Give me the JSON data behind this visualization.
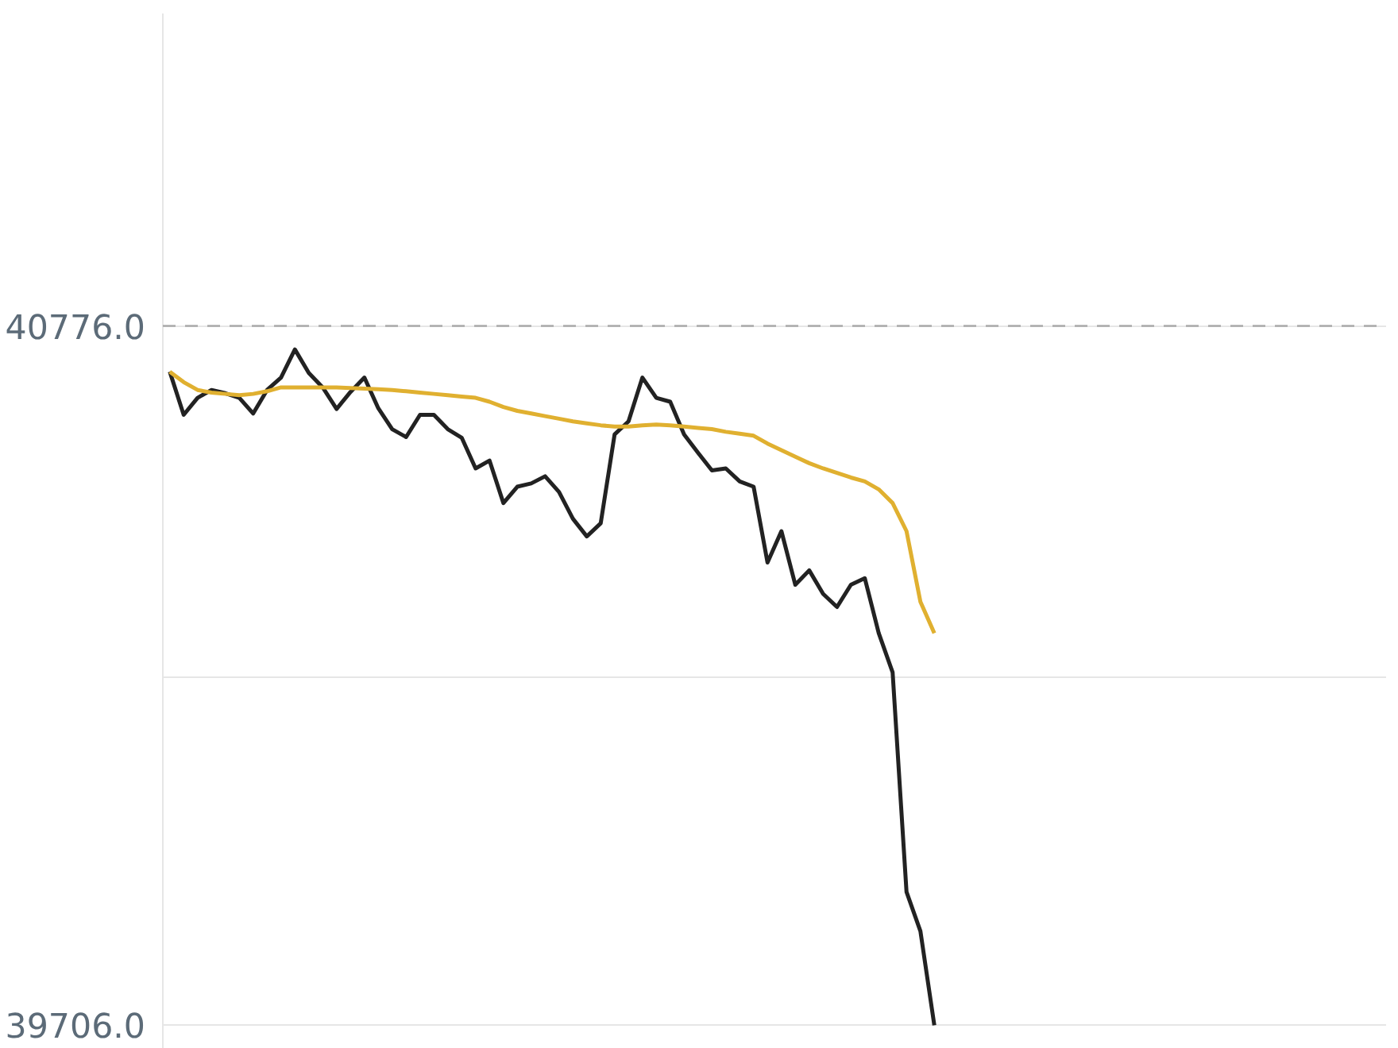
{
  "chart_data": {
    "type": "line",
    "ylim": [
      39670,
      41254
    ],
    "categories": [
      null,
      null,
      null,
      null,
      null,
      null,
      null,
      null,
      null,
      null,
      null,
      null,
      null,
      null,
      null,
      null,
      null,
      null,
      null,
      null,
      null,
      null,
      null,
      null,
      null,
      null,
      null,
      null,
      null,
      null,
      null,
      null,
      null,
      null,
      null,
      null,
      null,
      null,
      null,
      null,
      null,
      null,
      null,
      null,
      null,
      null,
      null,
      null,
      null,
      null,
      null,
      null,
      null,
      null,
      null,
      null,
      null,
      null,
      null,
      null,
      null,
      null,
      null,
      null,
      null,
      null,
      null,
      null,
      null,
      null,
      null,
      null,
      null,
      null,
      null,
      null,
      null,
      null,
      null,
      null,
      null,
      null,
      null,
      null,
      null,
      null,
      null,
      null
    ],
    "yticks": [
      {
        "value": 39706,
        "label": "39706.0"
      },
      {
        "value": 40238,
        "label": null
      },
      {
        "value": 40776,
        "label": "40776.0"
      }
    ],
    "tick_labels": "y",
    "grid": "y",
    "line_style": "solid",
    "ref_lines": [
      {
        "axis": "y",
        "value": 40776,
        "color": "#aaaaaa",
        "line_style": "dashed"
      }
    ],
    "series": [
      {
        "color": "#222222",
        "values": [
          40706,
          40640,
          40666,
          40678,
          40673,
          40666,
          40642,
          40678,
          40697,
          40740,
          40704,
          40682,
          40649,
          40675,
          40697,
          40650,
          40618,
          40606,
          40640,
          40640,
          40618,
          40605,
          40558,
          40570,
          40505,
          40530,
          40535,
          40546,
          40522,
          40481,
          40454,
          40474,
          40610,
          40630,
          40697,
          40666,
          40660,
          40610,
          40582,
          40555,
          40558,
          40538,
          40530,
          40414,
          40462,
          40380,
          40402,
          40366,
          40346,
          40380,
          40390,
          40306,
          40246,
          39910,
          39850,
          39706,
          null,
          null,
          null,
          null,
          null,
          null,
          null,
          null,
          null,
          null,
          null,
          null,
          null,
          null,
          null,
          null,
          null,
          null,
          null,
          null,
          null,
          null,
          null,
          null,
          null,
          null,
          null,
          null,
          null,
          null,
          null,
          null
        ]
      },
      {
        "color": "#e0b030",
        "values": [
          40706,
          40690,
          40678,
          40674,
          40672,
          40670,
          40672,
          40676,
          40682,
          40682,
          40682,
          40682,
          40682,
          40681,
          40680,
          40679,
          40678,
          40676,
          40674,
          40672,
          40670,
          40668,
          40666,
          40660,
          40652,
          40646,
          40642,
          40638,
          40634,
          40630,
          40627,
          40624,
          40622,
          40622,
          40624,
          40625,
          40624,
          40622,
          40620,
          40618,
          40614,
          40611,
          40608,
          40596,
          40586,
          40576,
          40566,
          40558,
          40551,
          40544,
          40538,
          40526,
          40505,
          40462,
          40354,
          40306,
          null,
          null,
          null,
          null,
          null,
          null,
          null,
          null,
          null,
          null,
          null,
          null,
          null,
          null,
          null,
          null,
          null,
          null,
          null,
          null,
          null,
          null,
          null,
          null,
          null,
          null,
          null,
          null,
          null,
          null,
          null,
          null
        ]
      }
    ]
  }
}
